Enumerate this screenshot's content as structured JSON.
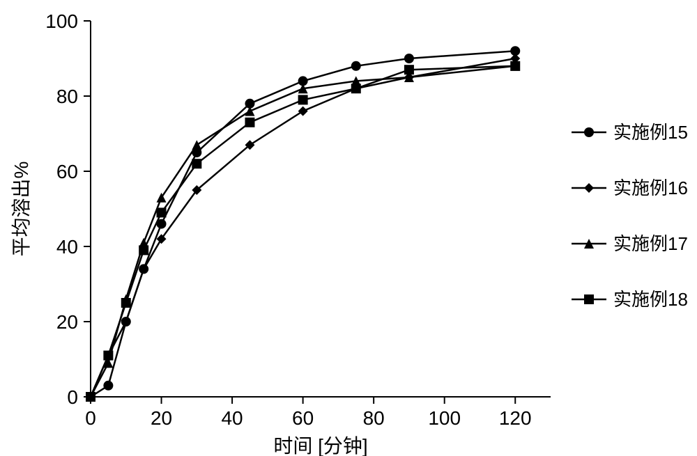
{
  "chart": {
    "type": "line",
    "background_color": "#ffffff",
    "axis_color": "#000000",
    "line_color": "#000000",
    "line_width": 2.5,
    "marker_size": 7,
    "xlabel": "时间 [分钟]",
    "ylabel": "平均溶出%",
    "xlim": [
      0,
      130
    ],
    "ylim": [
      0,
      100
    ],
    "xtick_step": 20,
    "ytick_step": 20,
    "tick_fontsize": 28,
    "label_fontsize": 28,
    "legend_fontsize": 26,
    "legend_position": "right",
    "series": [
      {
        "name": "实施例15",
        "marker": "circle",
        "x": [
          0,
          5,
          10,
          15,
          20,
          30,
          45,
          60,
          75,
          90,
          120
        ],
        "y": [
          0,
          3,
          20,
          34,
          46,
          65,
          78,
          84,
          88,
          90,
          92
        ]
      },
      {
        "name": "实施例16",
        "marker": "diamond",
        "x": [
          0,
          5,
          10,
          15,
          20,
          30,
          45,
          60,
          75,
          90,
          120
        ],
        "y": [
          0,
          11,
          20,
          34,
          42,
          55,
          67,
          76,
          82,
          85,
          90
        ]
      },
      {
        "name": "实施例17",
        "marker": "triangle",
        "x": [
          0,
          5,
          10,
          15,
          20,
          30,
          45,
          60,
          75,
          90,
          120
        ],
        "y": [
          0,
          9,
          26,
          41,
          53,
          67,
          76,
          82,
          84,
          85,
          88
        ]
      },
      {
        "name": "实施例18",
        "marker": "square",
        "x": [
          0,
          5,
          10,
          15,
          20,
          30,
          45,
          60,
          75,
          90,
          120
        ],
        "y": [
          0,
          11,
          25,
          39,
          49,
          62,
          73,
          79,
          82,
          87,
          88
        ]
      }
    ]
  }
}
